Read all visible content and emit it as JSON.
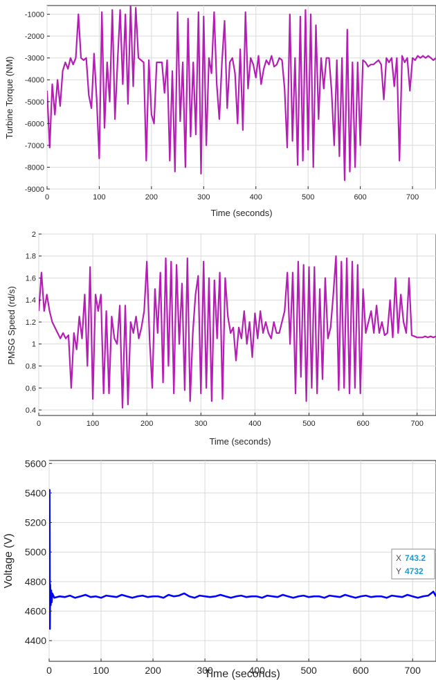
{
  "chart_data": [
    {
      "type": "line",
      "xlabel": "Time (seconds)",
      "ylabel": "Turbine Torque (NM)",
      "xlim": [
        0,
        745
      ],
      "ylim": [
        -9000,
        -600
      ],
      "xticks": [
        0,
        100,
        200,
        300,
        400,
        500,
        600,
        700
      ],
      "yticks": [
        -9000,
        -8000,
        -7000,
        -6000,
        -5000,
        -4000,
        -3000,
        -2000,
        -1000
      ],
      "grid": true,
      "line_color": "#b41eb4",
      "series": [
        {
          "x": [
            0,
            5,
            10,
            15,
            20,
            25,
            30,
            35,
            40,
            45,
            50,
            55,
            60,
            65,
            70,
            75,
            80,
            85,
            90,
            95,
            100,
            105,
            110,
            115,
            120,
            125,
            130,
            135,
            140,
            145,
            150,
            155,
            160,
            165,
            170,
            175,
            180,
            185,
            190,
            195,
            200,
            205,
            210,
            215,
            220,
            225,
            230,
            235,
            240,
            245,
            250,
            255,
            260,
            265,
            270,
            275,
            280,
            285,
            290,
            295,
            300,
            305,
            310,
            315,
            320,
            325,
            330,
            335,
            340,
            345,
            350,
            355,
            360,
            365,
            370,
            375,
            380,
            385,
            390,
            395,
            400,
            405,
            410,
            415,
            420,
            425,
            430,
            435,
            440,
            445,
            450,
            455,
            460,
            465,
            470,
            475,
            480,
            485,
            490,
            495,
            500,
            505,
            510,
            515,
            520,
            525,
            530,
            535,
            540,
            545,
            550,
            555,
            560,
            565,
            570,
            575,
            580,
            585,
            590,
            595,
            600,
            605,
            610,
            615,
            620,
            625,
            630,
            635,
            640,
            645,
            650,
            655,
            660,
            665,
            670,
            675,
            680,
            685,
            690,
            695,
            700,
            705,
            710,
            715,
            720,
            725,
            730,
            735,
            740,
            745
          ],
          "y": [
            -4500,
            -7100,
            -4200,
            -5600,
            -4000,
            -5200,
            -3600,
            -3200,
            -3500,
            -3000,
            -3300,
            -3000,
            -1000,
            -3000,
            -3100,
            -3000,
            -4700,
            -5300,
            -2800,
            -4900,
            -7600,
            -900,
            -6200,
            -3200,
            -5000,
            -800,
            -5800,
            -3200,
            -800,
            -4200,
            -1000,
            -5100,
            -600,
            -4300,
            -700,
            -3000,
            -3100,
            -3200,
            -7700,
            -3100,
            -5600,
            -6000,
            -3200,
            -3200,
            -3200,
            -4600,
            -3100,
            -7700,
            -3600,
            -8200,
            -900,
            -5900,
            -3200,
            -8000,
            -1200,
            -6600,
            -3200,
            -6500,
            -900,
            -8300,
            -1100,
            -7000,
            -3000,
            -3700,
            -900,
            -4200,
            -5800,
            -3200,
            -1300,
            -5300,
            -3200,
            -3000,
            -3700,
            -6000,
            -2600,
            -6300,
            -900,
            -4400,
            -3000,
            -3300,
            -3900,
            -2900,
            -4200,
            -3500,
            -3100,
            -3300,
            -2900,
            -3400,
            -3300,
            -3000,
            -3100,
            -4400,
            -7100,
            -1000,
            -6800,
            -3000,
            -7900,
            -1100,
            -7700,
            -800,
            -7200,
            -1000,
            -8000,
            -1500,
            -5800,
            -3000,
            -4400,
            -3000,
            -3000,
            -4500,
            -7000,
            -3100,
            -7500,
            -3000,
            -8600,
            -1700,
            -8200,
            -3200,
            -8000,
            -3200,
            -7000,
            -3100,
            -3200,
            -3400,
            -3300,
            -3300,
            -3200,
            -3100,
            -3300,
            -4900,
            -3000,
            -3200,
            -3000,
            -4300,
            -3000,
            -7700,
            -2900,
            -3200,
            -3000,
            -4500,
            -3000,
            -3100,
            -2900,
            -3000,
            -2900,
            -3000,
            -2900,
            -3000,
            -3100,
            -3000
          ]
        }
      ]
    },
    {
      "type": "line",
      "xlabel": "Time (seconds)",
      "ylabel": "PMSG Speed (rd/s)",
      "xlim": [
        0,
        735
      ],
      "ylim": [
        0.35,
        2.0
      ],
      "xticks": [
        0,
        100,
        200,
        300,
        400,
        500,
        600,
        700
      ],
      "yticks": [
        0.4,
        0.6,
        0.8,
        1,
        1.2,
        1.4,
        1.6,
        1.8,
        2
      ],
      "grid": true,
      "line_color": "#b41eb4",
      "series": [
        {
          "x": [
            0,
            5,
            10,
            15,
            20,
            25,
            30,
            35,
            40,
            45,
            50,
            55,
            60,
            65,
            70,
            75,
            80,
            85,
            90,
            95,
            100,
            105,
            110,
            115,
            120,
            125,
            130,
            135,
            140,
            145,
            150,
            155,
            160,
            165,
            170,
            175,
            180,
            185,
            190,
            195,
            200,
            205,
            210,
            215,
            220,
            225,
            230,
            235,
            240,
            245,
            250,
            255,
            260,
            265,
            270,
            275,
            280,
            285,
            290,
            295,
            300,
            305,
            310,
            315,
            320,
            325,
            330,
            335,
            340,
            345,
            350,
            355,
            360,
            365,
            370,
            375,
            380,
            385,
            390,
            395,
            400,
            405,
            410,
            415,
            420,
            425,
            430,
            435,
            440,
            445,
            450,
            455,
            460,
            465,
            470,
            475,
            480,
            485,
            490,
            495,
            500,
            505,
            510,
            515,
            520,
            525,
            530,
            535,
            540,
            545,
            550,
            555,
            560,
            565,
            570,
            575,
            580,
            585,
            590,
            595,
            600,
            605,
            610,
            615,
            620,
            625,
            630,
            635,
            640,
            645,
            650,
            655,
            660,
            665,
            670,
            675,
            680,
            685,
            690,
            695,
            700,
            705,
            710,
            715,
            720,
            725,
            730,
            735
          ],
          "y": [
            1.3,
            1.65,
            1.3,
            1.45,
            1.3,
            1.2,
            1.15,
            1.1,
            1.05,
            1.1,
            1.05,
            1.08,
            0.6,
            1.1,
            0.95,
            1.25,
            1.05,
            1.45,
            0.8,
            1.7,
            0.5,
            1.45,
            1.3,
            1.45,
            0.55,
            1.3,
            0.55,
            1.25,
            1.05,
            1.0,
            1.35,
            0.42,
            1.35,
            0.45,
            1.2,
            1.1,
            1.25,
            1.05,
            1.15,
            1.3,
            1.75,
            1.05,
            0.6,
            1.5,
            1.1,
            1.65,
            0.65,
            1.78,
            0.8,
            1.75,
            0.55,
            1.72,
            1.0,
            1.55,
            0.58,
            1.78,
            0.48,
            1.1,
            1.45,
            1.62,
            0.55,
            1.75,
            0.6,
            1.6,
            0.48,
            1.58,
            1.05,
            1.65,
            0.5,
            1.6,
            1.25,
            1.1,
            1.15,
            0.85,
            1.15,
            1.05,
            1.3,
            1.0,
            1.2,
            0.88,
            1.28,
            1.05,
            1.3,
            1.1,
            1.2,
            1.1,
            1.05,
            1.2,
            1.1,
            1.1,
            1.2,
            1.3,
            1.65,
            1.0,
            1.65,
            0.55,
            1.75,
            0.7,
            1.72,
            0.48,
            1.7,
            0.6,
            1.7,
            0.55,
            1.5,
            0.68,
            1.6,
            1.05,
            1.15,
            1.45,
            1.8,
            0.58,
            1.75,
            0.6,
            1.78,
            0.55,
            1.75,
            0.6,
            1.72,
            0.55,
            1.5,
            1.1,
            1.2,
            1.3,
            1.1,
            1.35,
            1.1,
            1.2,
            1.08,
            1.1,
            1.4,
            1.06,
            1.6,
            1.1,
            1.45,
            1.2,
            1.1,
            1.6,
            1.08,
            1.07,
            1.06,
            1.06,
            1.06,
            1.07,
            1.06,
            1.07,
            1.06,
            1.07
          ]
        }
      ]
    },
    {
      "type": "line",
      "xlabel": "Time (seconds)",
      "ylabel": "Voltage (V)",
      "xlim": [
        0,
        745
      ],
      "ylim": [
        4260,
        5620
      ],
      "xticks": [
        0,
        100,
        200,
        300,
        400,
        500,
        600,
        700
      ],
      "yticks": [
        4400,
        4600,
        4800,
        5000,
        5200,
        5400,
        5600
      ],
      "grid": true,
      "line_color": "#0000ff",
      "series": [
        {
          "x": [
            0,
            0.8,
            1.5,
            2,
            3,
            4,
            5,
            6,
            10,
            20,
            30,
            40,
            50,
            60,
            70,
            80,
            90,
            100,
            110,
            120,
            130,
            140,
            150,
            160,
            170,
            180,
            190,
            200,
            210,
            220,
            230,
            240,
            250,
            260,
            270,
            280,
            290,
            300,
            310,
            320,
            330,
            340,
            350,
            360,
            370,
            380,
            390,
            400,
            410,
            420,
            430,
            440,
            450,
            460,
            470,
            480,
            490,
            500,
            510,
            520,
            530,
            540,
            550,
            560,
            570,
            580,
            590,
            600,
            610,
            620,
            630,
            640,
            650,
            660,
            670,
            680,
            690,
            700,
            710,
            720,
            730,
            740,
            745
          ],
          "y": [
            4700,
            5420,
            4480,
            4780,
            4640,
            4740,
            4660,
            4720,
            4690,
            4700,
            4695,
            4705,
            4690,
            4700,
            4710,
            4695,
            4700,
            4690,
            4705,
            4700,
            4695,
            4710,
            4700,
            4690,
            4700,
            4705,
            4695,
            4700,
            4700,
            4690,
            4710,
            4700,
            4705,
            4720,
            4700,
            4690,
            4705,
            4700,
            4695,
            4700,
            4710,
            4700,
            4690,
            4700,
            4705,
            4695,
            4700,
            4700,
            4690,
            4705,
            4700,
            4695,
            4710,
            4700,
            4690,
            4700,
            4705,
            4695,
            4700,
            4700,
            4690,
            4705,
            4700,
            4695,
            4710,
            4700,
            4690,
            4700,
            4705,
            4695,
            4700,
            4700,
            4690,
            4705,
            4700,
            4695,
            4710,
            4700,
            4690,
            4700,
            4705,
            4732,
            4700
          ]
        }
      ],
      "datatip": {
        "x_label": "X",
        "x_value": "743.2",
        "y_label": "Y",
        "y_value": "4732"
      }
    }
  ]
}
